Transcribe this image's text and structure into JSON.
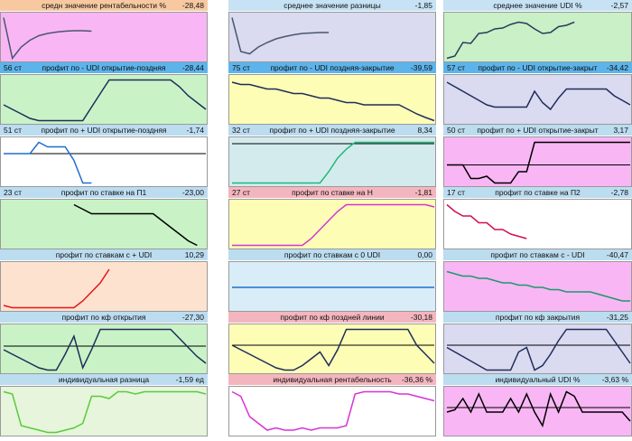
{
  "chart_data": [
    {
      "type": "line",
      "title": "средн значение рентабельности %",
      "result": "-28,48",
      "header_color": "#f8c9a0",
      "background": "#f9b6f4",
      "color": "#4a5670",
      "ylim": [
        0,
        100
      ],
      "values": [
        95,
        5,
        30,
        45,
        55,
        60,
        63,
        65,
        66,
        66,
        65,
        null,
        null,
        null,
        null,
        null,
        null,
        null,
        null,
        null,
        null,
        null,
        null,
        null
      ]
    },
    {
      "type": "line",
      "title": "среднее значение разницы",
      "result": "-1,85",
      "header_color": "#c6e2f4",
      "background": "#dadaf0",
      "color": "#4a5670",
      "ylim": [
        0,
        100
      ],
      "values": [
        95,
        20,
        15,
        30,
        40,
        48,
        53,
        57,
        60,
        61,
        62,
        62,
        null,
        null,
        null,
        null,
        null,
        null,
        null,
        null,
        null,
        null,
        null,
        null
      ]
    },
    {
      "type": "line",
      "title": "среднее значение UDI %",
      "result": "-2,57",
      "header_color": "#c6e2f4",
      "background": "#c9f0c6",
      "color": "#2c3a5a",
      "ylim": [
        0,
        100
      ],
      "values": [
        5,
        10,
        40,
        38,
        60,
        62,
        70,
        72,
        80,
        85,
        82,
        70,
        60,
        62,
        75,
        78,
        85,
        null,
        null,
        null,
        null,
        null,
        null,
        null
      ]
    },
    {
      "type": "line",
      "label": "56 ст",
      "title": "профит по - UDI открытие-поздняя",
      "result": "-28,44",
      "header_color": "#5db4ea",
      "background": "#c9f3c6",
      "color": "#1f2d5a",
      "ylim": [
        0,
        100
      ],
      "values": [
        40,
        30,
        20,
        10,
        5,
        5,
        5,
        5,
        5,
        5,
        35,
        65,
        95,
        95,
        95,
        95,
        95,
        95,
        95,
        95,
        80,
        60,
        45,
        30
      ]
    },
    {
      "type": "line",
      "label": "75 ст",
      "title": "профит по - UDI поздняя-закрытие",
      "result": "-39,59",
      "header_color": "#5db4ea",
      "background": "#fdfdb6",
      "color": "#1f2d5a",
      "ylim": [
        0,
        100
      ],
      "values": [
        90,
        85,
        85,
        80,
        75,
        75,
        70,
        65,
        65,
        60,
        55,
        55,
        50,
        45,
        45,
        40,
        40,
        40,
        40,
        40,
        30,
        20,
        12,
        5
      ]
    },
    {
      "type": "line",
      "label": "57 ст",
      "title": "профит по - UDI открытие-закрыт",
      "result": "-34,42",
      "header_color": "#5db4ea",
      "background": "#dadaf0",
      "color": "#1f2d5a",
      "ylim": [
        0,
        100
      ],
      "values": [
        90,
        80,
        70,
        60,
        50,
        40,
        35,
        35,
        35,
        35,
        35,
        70,
        45,
        30,
        55,
        75,
        75,
        75,
        75,
        75,
        75,
        60,
        50,
        40
      ]
    },
    {
      "type": "line",
      "label": "51 ст",
      "title": "профит по + UDI открытие-поздняя",
      "result": "-1,74",
      "header_color": "#bcdcf0",
      "background": "#ffffff",
      "color": "#1f6fd0",
      "hline": 70,
      "ylim": [
        0,
        100
      ],
      "values": [
        70,
        70,
        70,
        70,
        95,
        85,
        85,
        85,
        55,
        5,
        5,
        null,
        null,
        null,
        null,
        null,
        null,
        null,
        null,
        null,
        null,
        null,
        null,
        null
      ]
    },
    {
      "type": "line",
      "label": "32 ст",
      "title": "профит по + UDI поздняя-закрытие",
      "result": "8,34",
      "header_color": "#bcdcf0",
      "background": "#d4ebee",
      "color": "#1db87a",
      "hline": 92,
      "ylim": [
        0,
        100
      ],
      "values": [
        5,
        5,
        5,
        5,
        5,
        5,
        5,
        5,
        5,
        5,
        5,
        30,
        60,
        80,
        95,
        95,
        95,
        95,
        95,
        95,
        95,
        95,
        95,
        95
      ]
    },
    {
      "type": "line",
      "label": "50 ст",
      "title": "профит по + UDI открытие-закрыт",
      "result": "3,17",
      "header_color": "#bcdcf0",
      "background": "#f9b6f4",
      "color": "#000000",
      "hline": 45,
      "ylim": [
        0,
        100
      ],
      "values": [
        45,
        45,
        45,
        15,
        15,
        20,
        5,
        5,
        5,
        30,
        30,
        95,
        95,
        95,
        95,
        95,
        95,
        95,
        95,
        95,
        95,
        95,
        95,
        95
      ]
    },
    {
      "type": "line",
      "label": "23 ст",
      "title": "профит по ставке на П1",
      "result": "-23,00",
      "header_color": "#bcdcf0",
      "background": "#c9f3c6",
      "color": "#000000",
      "ylim": [
        0,
        100
      ],
      "values": [
        null,
        null,
        null,
        null,
        null,
        null,
        null,
        null,
        95,
        85,
        75,
        75,
        75,
        75,
        75,
        75,
        75,
        75,
        60,
        45,
        30,
        15,
        5,
        null
      ]
    },
    {
      "type": "line",
      "label": "27 ст",
      "title": "профит по ставке на Н",
      "result": "-1,81",
      "header_color": "#f4b6be",
      "background": "#fdfdb6",
      "color": "#d633d6",
      "ylim": [
        0,
        100
      ],
      "values": [
        5,
        5,
        5,
        5,
        5,
        5,
        5,
        5,
        5,
        20,
        40,
        60,
        80,
        95,
        95,
        95,
        95,
        95,
        95,
        95,
        95,
        95,
        95,
        90
      ]
    },
    {
      "type": "line",
      "label": "17 ст",
      "title": "профит по ставке на П2",
      "result": "-2,78",
      "header_color": "#bcdcf0",
      "background": "#ffffff",
      "color": "#d0104c",
      "ylim": [
        0,
        100
      ],
      "values": [
        95,
        80,
        70,
        70,
        55,
        55,
        40,
        40,
        30,
        25,
        20,
        null,
        null,
        null,
        null,
        null,
        null,
        null,
        null,
        null,
        null,
        null,
        null,
        null
      ]
    },
    {
      "type": "line",
      "title": "профит по ставкам с + UDI",
      "result": "10,29",
      "header_color": "#bcdcf0",
      "background": "#fde3cf",
      "color": "#e8141a",
      "ylim": [
        0,
        100
      ],
      "values": [
        10,
        5,
        5,
        5,
        5,
        5,
        5,
        5,
        5,
        20,
        40,
        60,
        90,
        null,
        null,
        null,
        null,
        null,
        null,
        null,
        null,
        null,
        null,
        null
      ]
    },
    {
      "type": "line",
      "title": "профит по ставкам с 0 UDI",
      "result": "0,00",
      "header_color": "#bcdcf0",
      "background": "#d9edf8",
      "color": "#1f6fd0",
      "ylim": [
        0,
        100
      ],
      "values": [
        50,
        50,
        50,
        50,
        50,
        50,
        50,
        50,
        50,
        50,
        50,
        50,
        50,
        50,
        50,
        50,
        50,
        50,
        50,
        50,
        50,
        50,
        50,
        50
      ]
    },
    {
      "type": "line",
      "title": "профит по ставкам с - UDI",
      "result": "-40,47",
      "header_color": "#bcdcf0",
      "background": "#f9b6f4",
      "color": "#1a9a6a",
      "ylim": [
        0,
        100
      ],
      "values": [
        85,
        80,
        75,
        75,
        70,
        70,
        65,
        60,
        60,
        55,
        55,
        50,
        50,
        45,
        45,
        40,
        40,
        40,
        40,
        35,
        30,
        25,
        20,
        20
      ]
    },
    {
      "type": "line",
      "title": "профит по кф открытия",
      "result": "-27,30",
      "header_color": "#bcdcf0",
      "background": "#c9f3c6",
      "color": "#1f2d5a",
      "hline": 58,
      "ylim": [
        0,
        100
      ],
      "values": [
        50,
        40,
        30,
        20,
        10,
        5,
        5,
        40,
        80,
        10,
        50,
        95,
        95,
        95,
        95,
        95,
        95,
        95,
        95,
        95,
        75,
        55,
        35,
        20
      ]
    },
    {
      "type": "line",
      "title": "профит по кф поздней линии",
      "result": "-30,18",
      "header_color": "#f4b6be",
      "background": "#fdfdb6",
      "color": "#1f2d5a",
      "hline": 60,
      "ylim": [
        0,
        100
      ],
      "values": [
        60,
        50,
        40,
        30,
        20,
        10,
        5,
        5,
        15,
        30,
        45,
        15,
        50,
        95,
        95,
        95,
        95,
        95,
        95,
        95,
        95,
        60,
        40,
        20
      ]
    },
    {
      "type": "line",
      "title": "профит по кф закрытия",
      "result": "-31,25",
      "header_color": "#bcdcf0",
      "background": "#dadaf0",
      "color": "#1f2d5a",
      "hline": 60,
      "ylim": [
        0,
        100
      ],
      "values": [
        55,
        45,
        35,
        25,
        15,
        5,
        5,
        5,
        5,
        45,
        55,
        5,
        15,
        40,
        70,
        95,
        95,
        95,
        95,
        95,
        95,
        70,
        45,
        20
      ]
    },
    {
      "type": "line",
      "title": "индивидуальная разница",
      "result": "-1,59 ед",
      "header_color": "#bcdcf0",
      "background": "#e6f5dc",
      "color": "#5acb3a",
      "ylim": [
        0,
        100
      ],
      "values": [
        95,
        90,
        20,
        15,
        10,
        5,
        5,
        10,
        15,
        25,
        85,
        85,
        80,
        95,
        95,
        90,
        95,
        95,
        95,
        95,
        95,
        95,
        95,
        90
      ]
    },
    {
      "type": "line",
      "title": "индивидуальная рентабельность",
      "result": "-36,36 %",
      "header_color": "#f4b6be",
      "background": "#ffffff",
      "color": "#d633d6",
      "ylim": [
        0,
        100
      ],
      "values": [
        95,
        85,
        40,
        25,
        10,
        15,
        10,
        10,
        15,
        10,
        15,
        15,
        15,
        20,
        90,
        95,
        95,
        95,
        95,
        90,
        90,
        85,
        80,
        75
      ]
    },
    {
      "type": "line",
      "title": "индивидуальный UDI %",
      "result": "-3,63 %",
      "header_color": "#bcdcf0",
      "background": "#f9b6f4",
      "color": "#000000",
      "hline": 60,
      "ylim": [
        0,
        100
      ],
      "values": [
        50,
        55,
        80,
        50,
        90,
        50,
        50,
        50,
        80,
        50,
        90,
        50,
        20,
        90,
        50,
        95,
        85,
        50,
        50,
        50,
        50,
        50,
        50,
        30
      ]
    }
  ]
}
